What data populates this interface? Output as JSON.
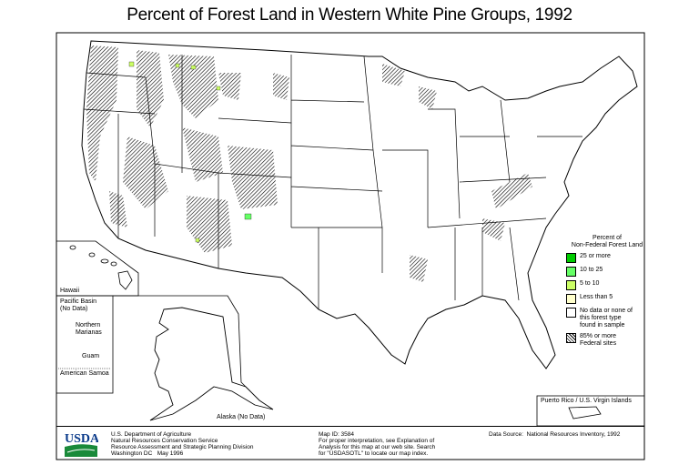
{
  "title": "Percent of Forest Land in Western White Pine Groups, 1992",
  "legend": {
    "heading_line1": "Percent of",
    "heading_line2": "Non-Federal Forest Land",
    "items": [
      {
        "label": "25 or more",
        "color": "#00cc00"
      },
      {
        "label": "10 to 25",
        "color": "#66ff66"
      },
      {
        "label": "5 to 10",
        "color": "#ccff66"
      },
      {
        "label": "Less than 5",
        "color": "#ffffcc"
      },
      {
        "label": "No data or none of this forest type found in sample",
        "color": "#ffffff"
      },
      {
        "label": "85% or more Federal sites",
        "pattern": "hatch"
      }
    ]
  },
  "insets": {
    "hawaii": "Hawaii",
    "pacific_basin": "Pacific Basin",
    "pacific_no_data": "(No Data)",
    "northern_marianas_1": "Northern",
    "northern_marianas_2": "Marianas",
    "guam": "Guam",
    "american_samoa": "American Samoa",
    "alaska": "Alaska (No Data)",
    "puerto_rico": "Puerto Rico / U.S. Virgin Islands"
  },
  "footer": {
    "logo": "USDA",
    "agency": [
      "U.S. Department of Agriculture",
      "Natural Resources Conservation Service",
      "Resource Assessment and Strategic Planning Division",
      "Washington DC   May 1996"
    ],
    "map_id": "Map ID: 3584",
    "note": [
      "For proper interpretation, see Explanation of",
      "Analysis for this map at our web site. Search",
      "for \"USDASOTL\" to locate our map index."
    ],
    "source": "Data Source:  National Resources Inventory, 1992"
  }
}
